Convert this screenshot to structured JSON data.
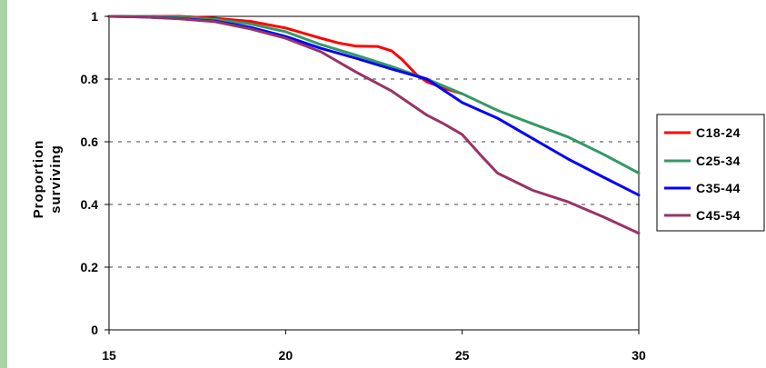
{
  "theme": {
    "left_band_color": "#a9d3a4"
  },
  "chart_data": {
    "type": "line",
    "title": "",
    "xlabel": "",
    "ylabel_lines": [
      "Proportion",
      "surviving"
    ],
    "xlim": [
      15,
      30
    ],
    "ylim": [
      0,
      1
    ],
    "x_ticks": [
      15,
      20,
      25,
      30
    ],
    "y_ticks": [
      0,
      0.2,
      0.4,
      0.6,
      0.8,
      1
    ],
    "y_tick_labels": [
      "0",
      "0.2",
      "0.4",
      "0.6",
      "0.8",
      "1"
    ],
    "grid": "horizontal dashed",
    "legend_position": "right",
    "series": [
      {
        "name": "C18-24",
        "color": "#ff0000",
        "points": [
          [
            15,
            1.0
          ],
          [
            16,
            1.0
          ],
          [
            17,
            1.0
          ],
          [
            18,
            0.994
          ],
          [
            19,
            0.984
          ],
          [
            20,
            0.963
          ],
          [
            21,
            0.93
          ],
          [
            21.5,
            0.915
          ],
          [
            22,
            0.905
          ],
          [
            22.6,
            0.904
          ],
          [
            23,
            0.89
          ],
          [
            23.3,
            0.862
          ],
          [
            23.7,
            0.815
          ],
          [
            24,
            0.791
          ],
          [
            24.5,
            0.77
          ],
          [
            25,
            0.753
          ]
        ]
      },
      {
        "name": "C25-34",
        "color": "#339966",
        "points": [
          [
            15,
            1.0
          ],
          [
            16,
            1.0
          ],
          [
            17,
            0.998
          ],
          [
            18,
            0.99
          ],
          [
            19,
            0.976
          ],
          [
            20,
            0.951
          ],
          [
            21,
            0.91
          ],
          [
            22,
            0.876
          ],
          [
            23,
            0.84
          ],
          [
            24,
            0.8
          ],
          [
            25,
            0.753
          ],
          [
            26,
            0.7
          ],
          [
            27,
            0.657
          ],
          [
            28,
            0.615
          ],
          [
            29,
            0.56
          ],
          [
            30,
            0.5
          ]
        ]
      },
      {
        "name": "C35-44",
        "color": "#0000ff",
        "points": [
          [
            15,
            1.0
          ],
          [
            16,
            0.998
          ],
          [
            17,
            0.993
          ],
          [
            18,
            0.985
          ],
          [
            19,
            0.965
          ],
          [
            20,
            0.936
          ],
          [
            21,
            0.898
          ],
          [
            22,
            0.866
          ],
          [
            23,
            0.832
          ],
          [
            24,
            0.8
          ],
          [
            25,
            0.725
          ],
          [
            26,
            0.675
          ],
          [
            27,
            0.61
          ],
          [
            28,
            0.545
          ],
          [
            29,
            0.487
          ],
          [
            30,
            0.43
          ]
        ]
      },
      {
        "name": "C45-54",
        "color": "#993366",
        "points": [
          [
            15,
            1.0
          ],
          [
            16,
            0.998
          ],
          [
            17,
            0.992
          ],
          [
            18,
            0.983
          ],
          [
            19,
            0.96
          ],
          [
            20,
            0.93
          ],
          [
            21,
            0.887
          ],
          [
            22,
            0.822
          ],
          [
            23,
            0.762
          ],
          [
            24,
            0.685
          ],
          [
            24.5,
            0.656
          ],
          [
            25,
            0.623
          ],
          [
            25.5,
            0.56
          ],
          [
            26,
            0.5
          ],
          [
            27,
            0.445
          ],
          [
            28,
            0.408
          ],
          [
            29,
            0.36
          ],
          [
            30,
            0.308
          ]
        ]
      }
    ]
  }
}
